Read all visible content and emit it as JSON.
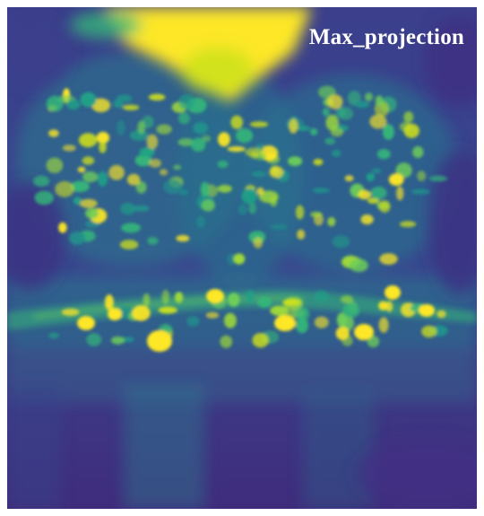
{
  "image": {
    "label": "Max_projection",
    "colormap": [
      "#440154",
      "#3b528b",
      "#21918c",
      "#5ec962",
      "#fde725"
    ]
  }
}
